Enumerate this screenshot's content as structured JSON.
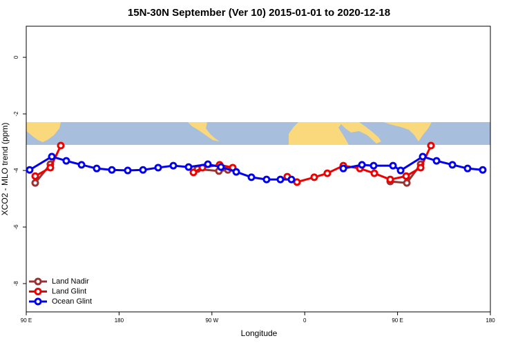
{
  "chart_data": {
    "type": "line",
    "title": "15N-30N September (Ver 10)   2015-01-01 to 2020-12-18",
    "x_label": "Longitude",
    "y_label": "XCO2 - MLO trend (ppm)",
    "xlim": [
      90,
      540
    ],
    "ylim": [
      -9,
      1.1
    ],
    "xticks": [
      {
        "value": 90,
        "label": "90 E"
      },
      180,
      {
        "value": 270,
        "label": "90 W"
      },
      {
        "value": 360,
        "label": "0"
      },
      {
        "value": 450,
        "label": "90 E"
      },
      {
        "value": 540,
        "label": "180"
      }
    ],
    "yticks": [
      -8,
      -6,
      -4,
      -2,
      0
    ],
    "legend": "bottom-left",
    "series": [
      {
        "name": "Land Nadir",
        "color": "#993333",
        "x": [
          98.7,
          113.4,
          null,
          256.1,
          276.8,
          285.5,
          null,
          442.9,
          459.0,
          472.4
        ],
        "values": [
          -4.44,
          -3.78,
          null,
          -3.95,
          -4.02,
          -3.98,
          null,
          -4.39,
          -4.44,
          -3.78
        ]
      },
      {
        "name": "Land Glint",
        "color": "#ee0000",
        "x": [
          98.7,
          113.4,
          123.5,
          null,
          252.1,
          260.8,
          277.5,
          290.2,
          null,
          343.1,
          352.5,
          369.2,
          381.9,
          397.4,
          413.5,
          427.5,
          442.9,
          458.3,
          472.4,
          482.4
        ],
        "values": [
          -4.2,
          -3.9,
          -3.12,
          null,
          -4.07,
          -3.9,
          -3.8,
          -3.9,
          null,
          -4.22,
          -4.41,
          -4.24,
          -4.1,
          -3.83,
          -3.93,
          -4.1,
          -4.32,
          -4.2,
          -3.9,
          -3.12
        ]
      },
      {
        "name": "Ocean Glint",
        "color": "#0000ee",
        "x": [
          93.3,
          114.8,
          128.8,
          143.6,
          158.3,
          173.0,
          188.4,
          203.2,
          217.9,
          232.6,
          247.4,
          266.1,
          278.8,
          293.6,
          308.3,
          323.0,
          336.4,
          347.1,
          null,
          397.4,
          415.5,
          426.8,
          445.6,
          453.0,
          474.4,
          487.8,
          503.2,
          517.9,
          532.6
        ],
        "values": [
          -3.98,
          -3.51,
          -3.66,
          -3.8,
          -3.93,
          -3.98,
          -4.0,
          -3.98,
          -3.9,
          -3.83,
          -3.88,
          -3.78,
          -3.88,
          -4.05,
          -4.24,
          -4.32,
          -4.32,
          -4.32,
          null,
          -3.93,
          -3.8,
          -3.83,
          -3.83,
          -4.0,
          -3.51,
          -3.66,
          -3.8,
          -3.93,
          -3.98
        ]
      }
    ]
  }
}
